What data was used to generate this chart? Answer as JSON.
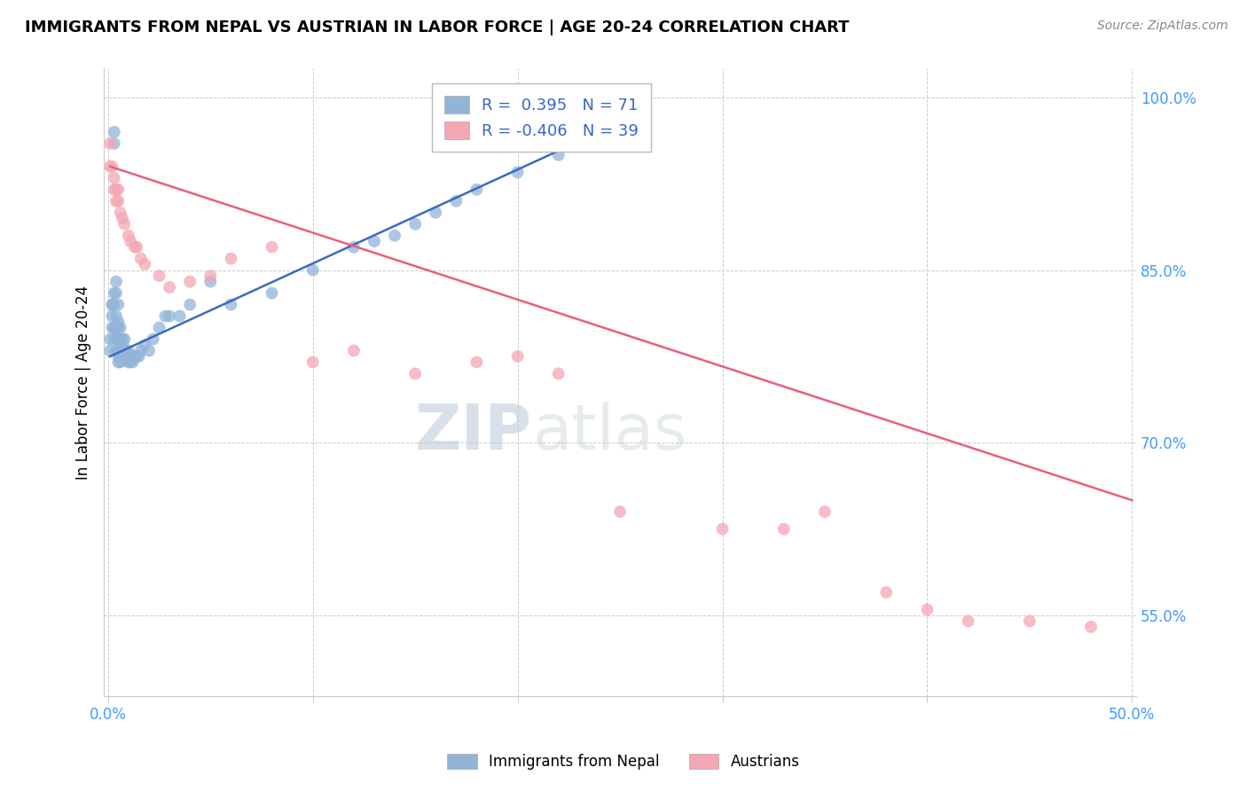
{
  "title": "IMMIGRANTS FROM NEPAL VS AUSTRIAN IN LABOR FORCE | AGE 20-24 CORRELATION CHART",
  "source": "Source: ZipAtlas.com",
  "ylabel": "In Labor Force | Age 20-24",
  "xlim": [
    -0.002,
    0.502
  ],
  "ylim": [
    0.48,
    1.025
  ],
  "xtick_vals": [
    0.0,
    0.1,
    0.2,
    0.3,
    0.4,
    0.5
  ],
  "xtick_labels": [
    "0.0%",
    "",
    "",
    "",
    "",
    "50.0%"
  ],
  "ytick_vals": [
    0.55,
    0.7,
    0.85,
    1.0
  ],
  "ytick_labels": [
    "55.0%",
    "70.0%",
    "85.0%",
    "100.0%"
  ],
  "blue_R": 0.395,
  "blue_N": 71,
  "pink_R": -0.406,
  "pink_N": 39,
  "blue_color": "#92B4D9",
  "pink_color": "#F4A7B4",
  "blue_line_color": "#3A6BBF",
  "pink_line_color": "#E8607A",
  "watermark_zip": "ZIP",
  "watermark_atlas": "atlas",
  "grid_color": "#CCCCCC",
  "blue_x": [
    0.001,
    0.001,
    0.002,
    0.002,
    0.002,
    0.002,
    0.003,
    0.003,
    0.003,
    0.003,
    0.003,
    0.003,
    0.003,
    0.004,
    0.004,
    0.004,
    0.004,
    0.004,
    0.004,
    0.005,
    0.005,
    0.005,
    0.005,
    0.005,
    0.005,
    0.005,
    0.005,
    0.006,
    0.006,
    0.006,
    0.006,
    0.006,
    0.007,
    0.007,
    0.007,
    0.007,
    0.008,
    0.008,
    0.008,
    0.009,
    0.009,
    0.01,
    0.01,
    0.011,
    0.012,
    0.013,
    0.014,
    0.015,
    0.016,
    0.018,
    0.02,
    0.022,
    0.025,
    0.028,
    0.03,
    0.035,
    0.04,
    0.05,
    0.06,
    0.08,
    0.1,
    0.12,
    0.13,
    0.14,
    0.15,
    0.16,
    0.17,
    0.18,
    0.2,
    0.22,
    0.23
  ],
  "blue_y": [
    0.78,
    0.79,
    0.8,
    0.81,
    0.82,
    0.82,
    0.79,
    0.8,
    0.8,
    0.82,
    0.83,
    0.96,
    0.97,
    0.78,
    0.79,
    0.8,
    0.81,
    0.83,
    0.84,
    0.77,
    0.775,
    0.78,
    0.78,
    0.79,
    0.8,
    0.805,
    0.82,
    0.77,
    0.775,
    0.78,
    0.79,
    0.8,
    0.775,
    0.78,
    0.785,
    0.79,
    0.775,
    0.78,
    0.79,
    0.775,
    0.78,
    0.77,
    0.78,
    0.77,
    0.77,
    0.775,
    0.775,
    0.775,
    0.78,
    0.785,
    0.78,
    0.79,
    0.8,
    0.81,
    0.81,
    0.81,
    0.82,
    0.84,
    0.82,
    0.83,
    0.85,
    0.87,
    0.875,
    0.88,
    0.89,
    0.9,
    0.91,
    0.92,
    0.935,
    0.95,
    0.96
  ],
  "pink_x": [
    0.001,
    0.001,
    0.002,
    0.003,
    0.003,
    0.004,
    0.004,
    0.005,
    0.005,
    0.006,
    0.007,
    0.008,
    0.01,
    0.011,
    0.013,
    0.014,
    0.016,
    0.018,
    0.025,
    0.03,
    0.04,
    0.05,
    0.06,
    0.08,
    0.1,
    0.12,
    0.15,
    0.18,
    0.2,
    0.22,
    0.25,
    0.3,
    0.33,
    0.35,
    0.38,
    0.4,
    0.42,
    0.45,
    0.48
  ],
  "pink_y": [
    0.94,
    0.96,
    0.94,
    0.92,
    0.93,
    0.91,
    0.92,
    0.91,
    0.92,
    0.9,
    0.895,
    0.89,
    0.88,
    0.875,
    0.87,
    0.87,
    0.86,
    0.855,
    0.845,
    0.835,
    0.84,
    0.845,
    0.86,
    0.87,
    0.77,
    0.78,
    0.76,
    0.77,
    0.775,
    0.76,
    0.64,
    0.625,
    0.625,
    0.64,
    0.57,
    0.555,
    0.545,
    0.545,
    0.54
  ],
  "blue_line_x": [
    0.001,
    0.24
  ],
  "blue_line_y": [
    0.775,
    0.97
  ],
  "pink_line_x": [
    0.001,
    0.5
  ],
  "pink_line_y": [
    0.94,
    0.65
  ]
}
